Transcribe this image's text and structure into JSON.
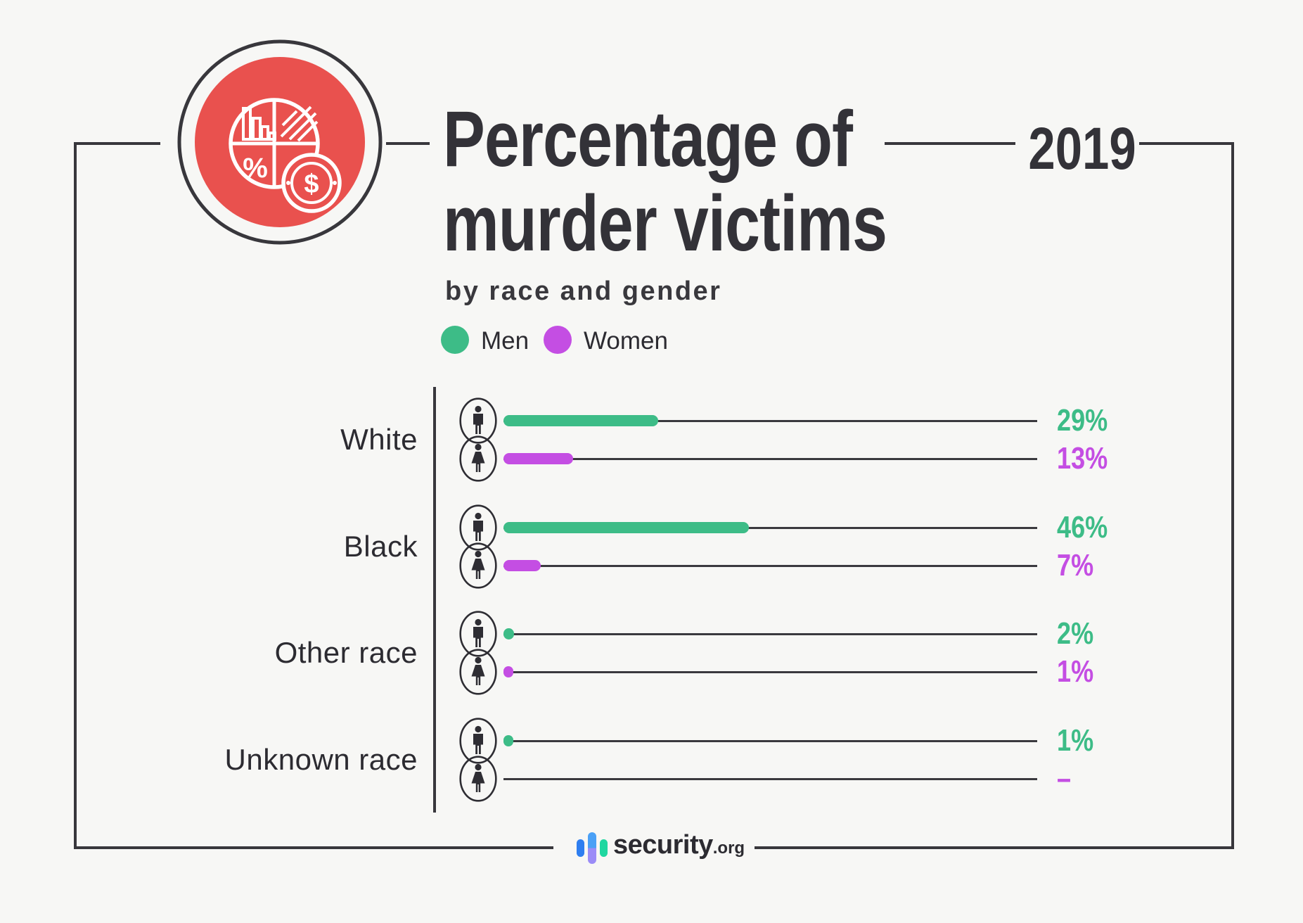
{
  "header": {
    "title_line1": "Percentage of",
    "title_line2": "murder victims",
    "subtitle": "by race and gender",
    "year": "2019"
  },
  "legend": [
    {
      "label": "Men",
      "color": "#3dbc87"
    },
    {
      "label": "Women",
      "color": "#c44ee3"
    }
  ],
  "chart_data": {
    "type": "bar",
    "orientation": "horizontal",
    "title": "Percentage of murder victims",
    "subtitle": "by race and gender",
    "year": "2019",
    "unit": "%",
    "categories": [
      "White",
      "Black",
      "Other race",
      "Unknown race"
    ],
    "series": [
      {
        "name": "Men",
        "color": "#3dbc87",
        "values": [
          29,
          46,
          2,
          1
        ]
      },
      {
        "name": "Women",
        "color": "#c44ee3",
        "values": [
          13,
          7,
          1,
          null
        ]
      }
    ],
    "value_labels": [
      [
        "29%",
        "46%",
        "2%",
        "1%"
      ],
      [
        "13%",
        "7%",
        "1%",
        "–"
      ]
    ],
    "xlim": [
      0,
      100
    ],
    "grid": false,
    "legend_position": "top-left"
  },
  "footer": {
    "brand": "security",
    "brand_suffix": ".org"
  },
  "icons": {
    "badge": "pie-chart-statistics-icon",
    "row_male": "male-person-icon",
    "row_female": "female-person-icon",
    "logo": "security-org-logo-bars-icon"
  },
  "colors": {
    "background": "#f7f7f5",
    "ink": "#38373c",
    "accent_red": "#e9514e",
    "men_green": "#3dbc87",
    "women_purple": "#c44ee3",
    "logo_blue": "#2e7ef0",
    "logo_lightblue": "#4aa0f6",
    "logo_lavender": "#9b8cf7",
    "logo_green": "#1fd7a0"
  }
}
